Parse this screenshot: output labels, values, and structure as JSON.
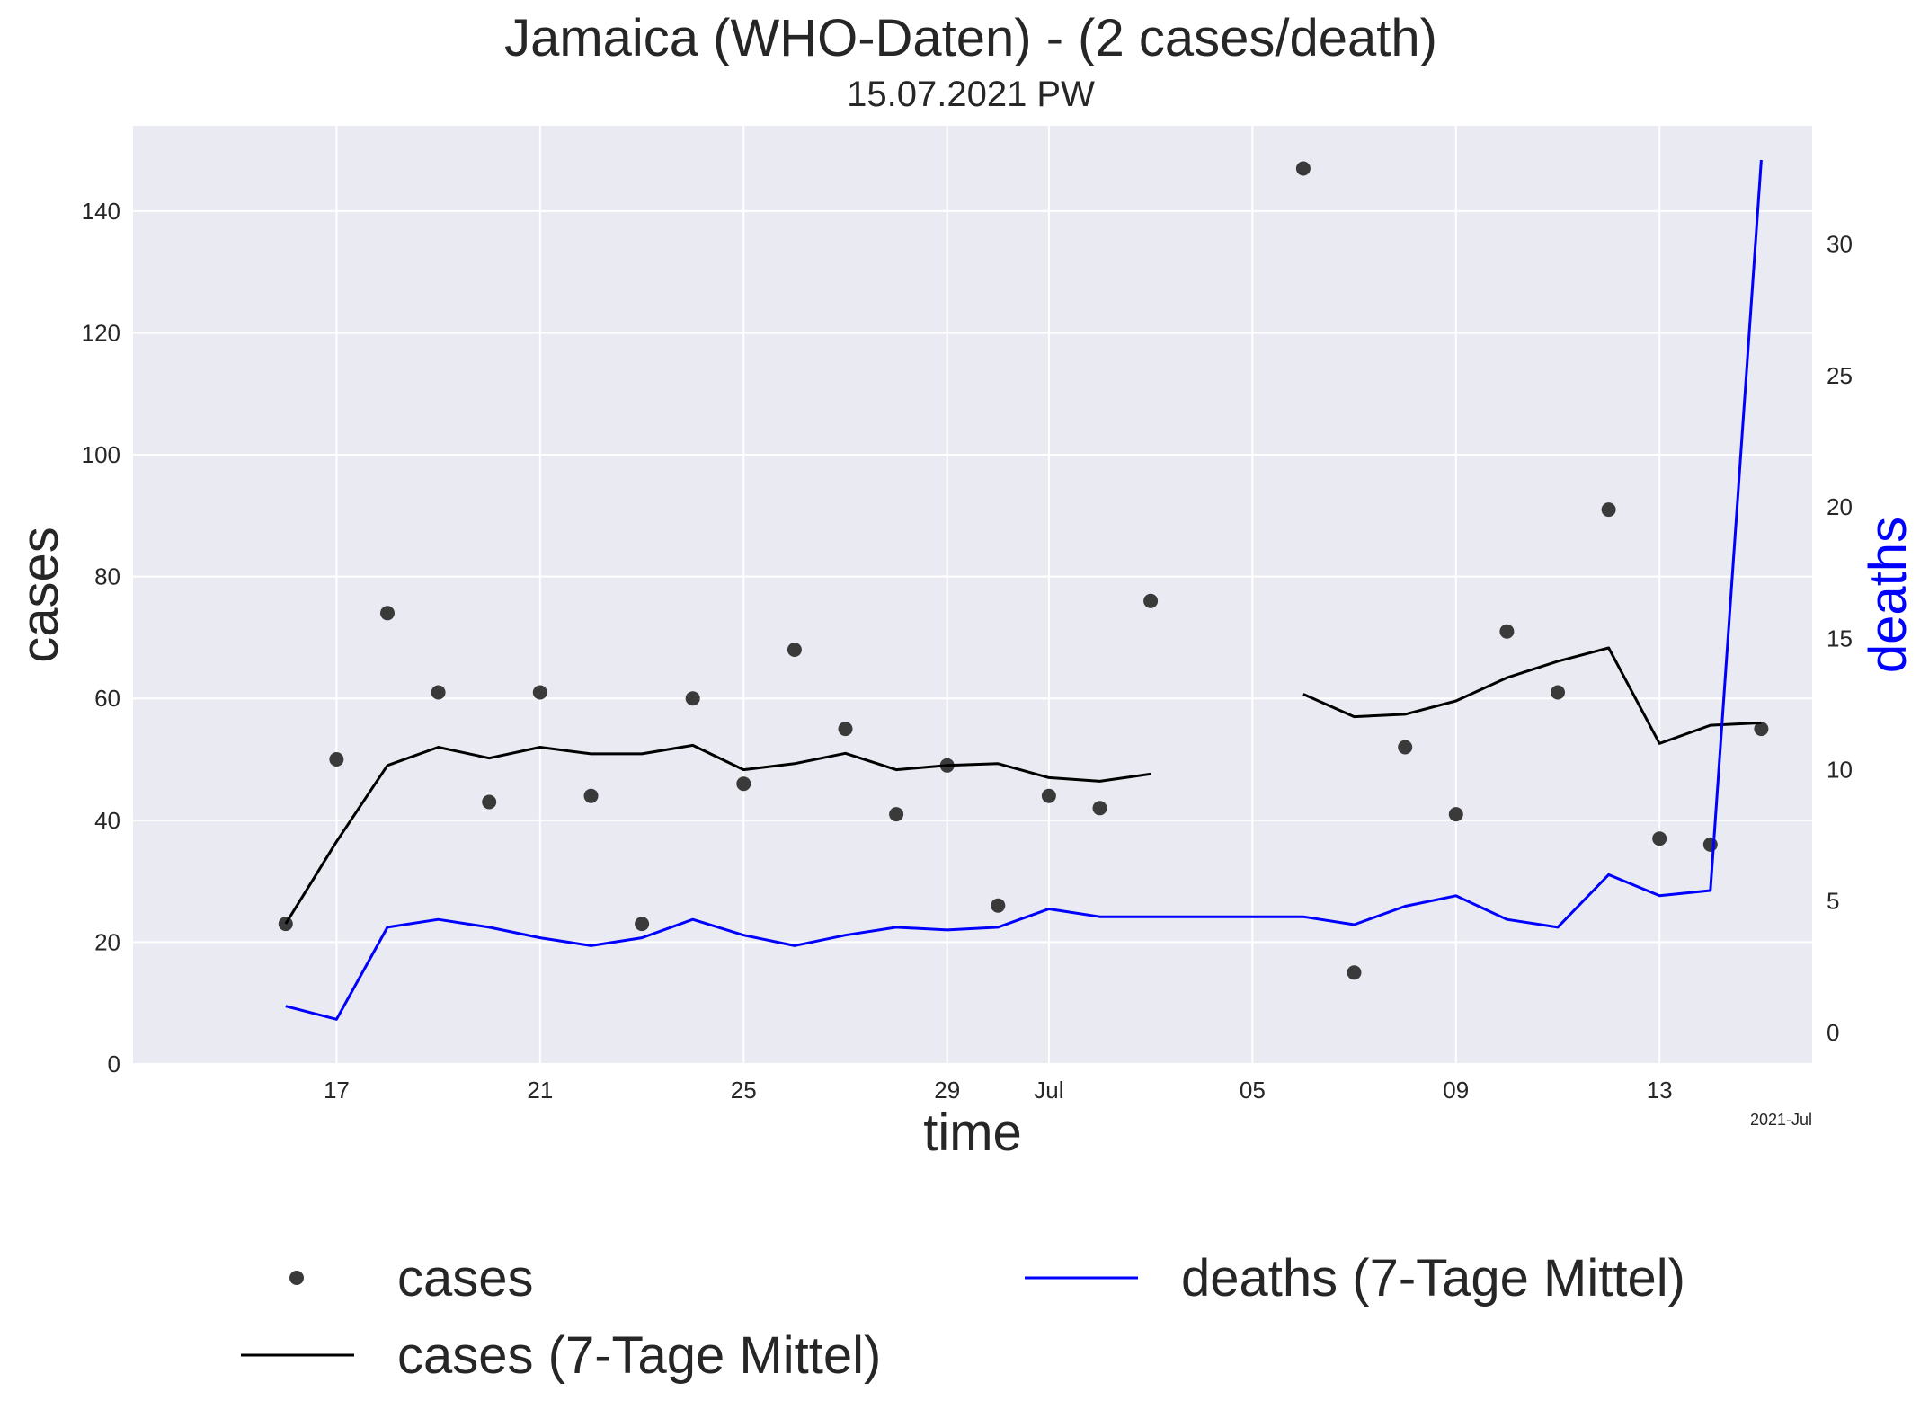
{
  "chart_data": {
    "type": "line",
    "title": "Jamaica (WHO-Daten) - (2 cases/death)",
    "subtitle": "15.07.2021 PW",
    "xlabel": "time",
    "ylabel": "cases",
    "y2label": "deaths",
    "x_offset_label": "2021-Jul",
    "grid": true,
    "background": "#eaeaf2",
    "ylim": [
      0,
      154
    ],
    "y2lim": [
      -1.2,
      34.5
    ],
    "xlim": [
      "2021-06-13",
      "2021-07-16"
    ],
    "yticks": [
      0,
      20,
      40,
      60,
      80,
      100,
      120,
      140
    ],
    "y2ticks": [
      0,
      5,
      10,
      15,
      20,
      25,
      30
    ],
    "xticks": [
      {
        "date": "2021-06-17",
        "label": "17"
      },
      {
        "date": "2021-06-21",
        "label": "21"
      },
      {
        "date": "2021-06-25",
        "label": "25"
      },
      {
        "date": "2021-06-29",
        "label": "29"
      },
      {
        "date": "2021-07-01",
        "label": "Jul"
      },
      {
        "date": "2021-07-05",
        "label": "05"
      },
      {
        "date": "2021-07-09",
        "label": "09"
      },
      {
        "date": "2021-07-13",
        "label": "13"
      }
    ],
    "x": [
      "2021-06-16",
      "2021-06-17",
      "2021-06-18",
      "2021-06-19",
      "2021-06-20",
      "2021-06-21",
      "2021-06-22",
      "2021-06-23",
      "2021-06-24",
      "2021-06-25",
      "2021-06-26",
      "2021-06-27",
      "2021-06-28",
      "2021-06-29",
      "2021-06-30",
      "2021-07-01",
      "2021-07-02",
      "2021-07-03",
      "2021-07-04",
      "2021-07-05",
      "2021-07-06",
      "2021-07-07",
      "2021-07-08",
      "2021-07-09",
      "2021-07-10",
      "2021-07-11",
      "2021-07-12",
      "2021-07-13",
      "2021-07-14",
      "2021-07-15"
    ],
    "series": [
      {
        "name": "cases",
        "type": "scatter",
        "axis": "left",
        "color": "#3a3a3a",
        "values": [
          23,
          50,
          74,
          61,
          43,
          61,
          44,
          23,
          60,
          46,
          68,
          55,
          41,
          49,
          26,
          44,
          42,
          76,
          null,
          null,
          147,
          15,
          52,
          41,
          71,
          61,
          91,
          37,
          36,
          55
        ]
      },
      {
        "name": "cases (7-Tage Mittel)",
        "type": "line",
        "axis": "left",
        "color": "#000000",
        "values": [
          23,
          36.5,
          49,
          52,
          50.2,
          52,
          50.9,
          50.9,
          52.3,
          48.3,
          49.3,
          51,
          48.3,
          49,
          49.3,
          47,
          46.4,
          47.6,
          null,
          null,
          60.7,
          57,
          57.4,
          59.6,
          63.4,
          66.1,
          68.3,
          52.6,
          55.6,
          56
        ]
      },
      {
        "name": "deaths (7-Tage Mittel)",
        "type": "line",
        "axis": "right",
        "color": "#0000ff",
        "values": [
          1,
          0.5,
          4,
          4.3,
          4,
          3.6,
          3.3,
          3.6,
          4.3,
          3.7,
          3.3,
          3.7,
          4,
          3.9,
          4,
          4.7,
          4.4,
          4.4,
          4.4,
          4.4,
          4.4,
          4.1,
          4.8,
          5.2,
          4.3,
          4,
          6,
          5.2,
          5.4,
          33.2
        ]
      }
    ],
    "legend": {
      "position": "bottom",
      "entries": [
        "cases",
        "cases (7-Tage Mittel)",
        "deaths (7-Tage Mittel)"
      ]
    }
  }
}
